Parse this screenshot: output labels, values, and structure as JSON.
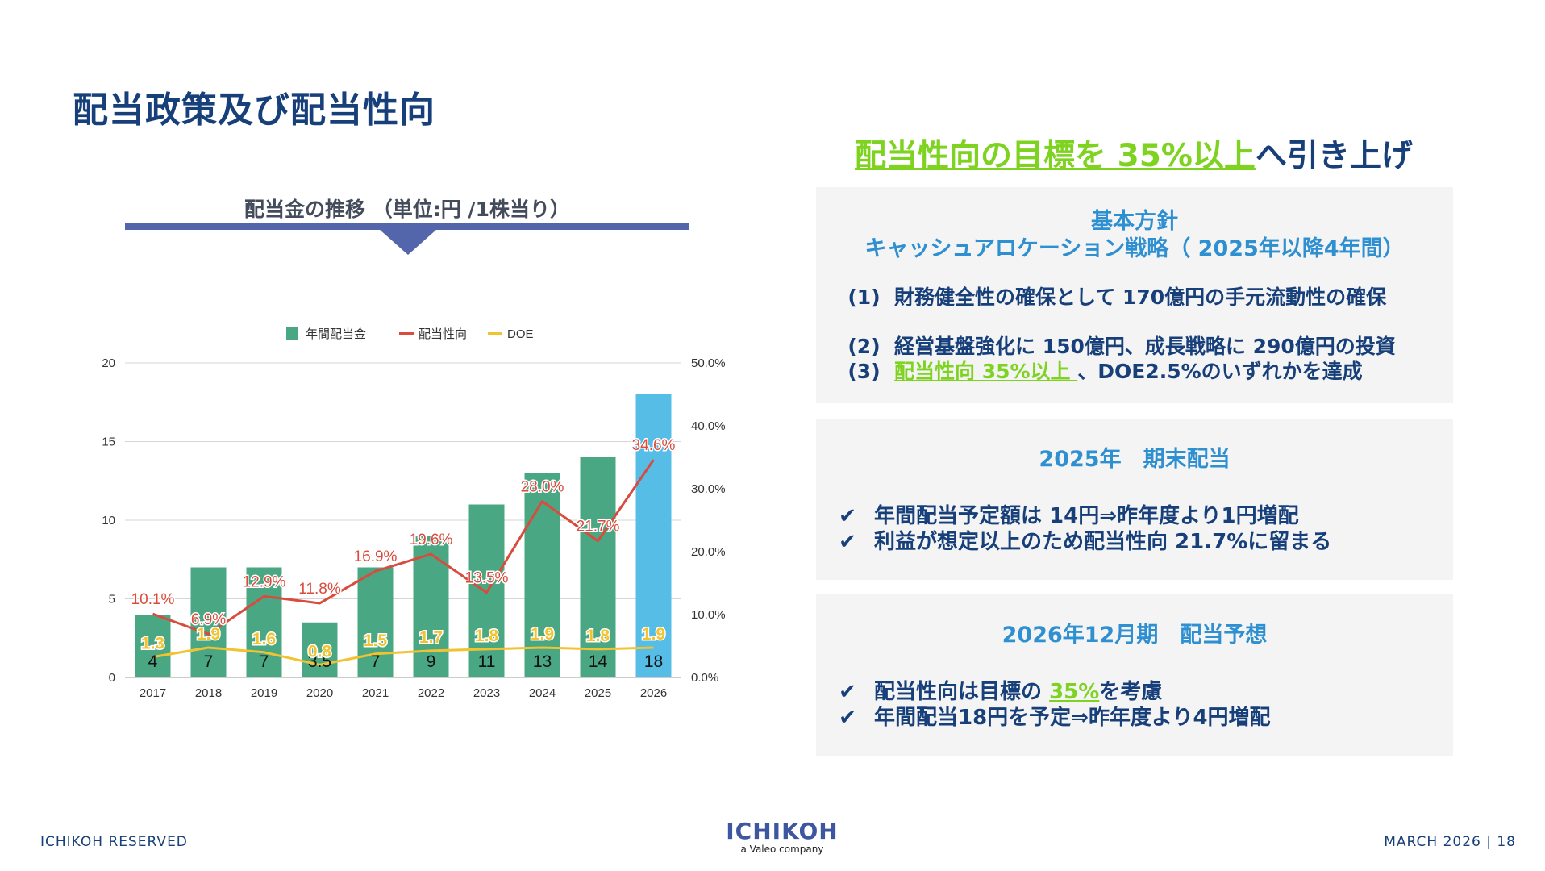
{
  "page": {
    "title": "配当政策及び配当性向",
    "chart_caption": "配当金の推移 （単位:円 /1株当り）"
  },
  "chart_data": {
    "type": "bar",
    "categories": [
      "2017",
      "2018",
      "2019",
      "2020",
      "2021",
      "2022",
      "2023",
      "2024",
      "2025",
      "2026"
    ],
    "series": [
      {
        "name": "年間配当金",
        "type": "bar",
        "axis": "left",
        "values": [
          4,
          7,
          7,
          3.5,
          7,
          9,
          11,
          13,
          14,
          18
        ],
        "labels": [
          "4",
          "7",
          "7",
          "3.5",
          "7",
          "9",
          "11",
          "13",
          "14",
          "18"
        ],
        "color": "#4aa783",
        "highlight_color": "#55bde6"
      },
      {
        "name": "配当性向",
        "type": "line",
        "axis": "right",
        "values": [
          10.1,
          6.9,
          12.9,
          11.8,
          16.9,
          19.6,
          13.5,
          28.0,
          21.7,
          34.6
        ],
        "labels": [
          "10.1%",
          "6.9%",
          "12.9%",
          "11.8%",
          "16.9%",
          "19.6%",
          "13.5%",
          "28.0%",
          "21.7%",
          "34.6%"
        ],
        "color": "#d94b3d"
      },
      {
        "name": "DOE",
        "type": "line",
        "axis": "left",
        "values": [
          1.3,
          1.9,
          1.6,
          0.8,
          1.5,
          1.7,
          1.8,
          1.9,
          1.8,
          1.9
        ],
        "labels": [
          "1.3",
          "1.9",
          "1.6",
          "0.8",
          "1.5",
          "1.7",
          "1.8",
          "1.9",
          "1.8",
          "1.9"
        ],
        "color": "#f2c330"
      }
    ],
    "yticks_left": [
      "0",
      "5",
      "10",
      "15",
      "20"
    ],
    "ylim_left": [
      0,
      20
    ],
    "yticks_right": [
      "0.0%",
      "10.0%",
      "20.0%",
      "30.0%",
      "40.0%",
      "50.0%"
    ],
    "ylim_right": [
      0,
      50
    ],
    "grid": true,
    "legend_position": "top-center"
  },
  "right_panel": {
    "headline_highlight": "配当性向の目標を 35%以上",
    "headline_rest": "へ引き上げ",
    "policy": {
      "heading1": "基本方針",
      "heading2": "キャッシュアロケーション戦略（ 2025年以降4年間）",
      "items": [
        {
          "num": "(1)",
          "text": "財務健全性の確保として 170億円の手元流動性の確保"
        },
        {
          "num": "(2)",
          "text": "経営基盤強化に 150億円、成長戦略に 290億円の投資"
        },
        {
          "num": "(3)",
          "highlight": "配当性向 35%以上 ",
          "text": "、DOE2.5%のいずれかを達成"
        }
      ]
    },
    "fy2025": {
      "heading": "2025年　期末配当",
      "items": [
        "年間配当予定額は 14円⇒昨年度より1円増配",
        "利益が想定以上のため配当性向 21.7%に留まる"
      ]
    },
    "fy2026": {
      "heading": "2026年12月期　配当予想",
      "item1_pre": "配当性向は目標の ",
      "item1_highlight": "35%",
      "item1_post": "を考慮",
      "item2": "年間配当18円を予定⇒昨年度より4円増配"
    },
    "check_icon": "✔"
  },
  "footer": {
    "left": "ICHIKOH RESERVED",
    "logo_main": "ICHIKOH",
    "logo_sub": "a Valeo company",
    "right": "MARCH 2026 | 18"
  }
}
